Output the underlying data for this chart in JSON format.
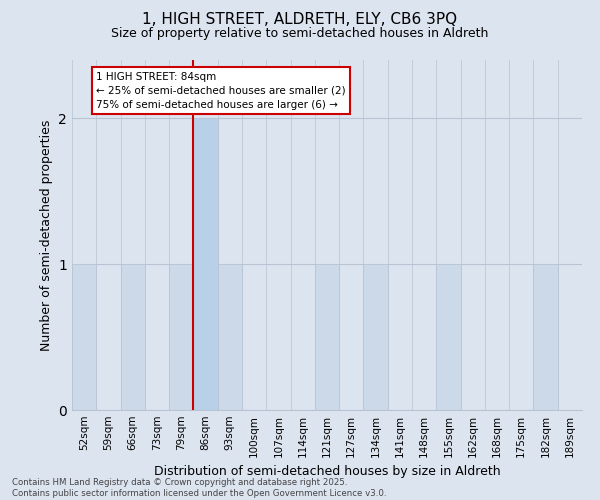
{
  "title_line1": "1, HIGH STREET, ALDRETH, ELY, CB6 3PQ",
  "title_line2": "Size of property relative to semi-detached houses in Aldreth",
  "xlabel": "Distribution of semi-detached houses by size in Aldreth",
  "ylabel": "Number of semi-detached properties",
  "categories": [
    "52sqm",
    "59sqm",
    "66sqm",
    "73sqm",
    "79sqm",
    "86sqm",
    "93sqm",
    "100sqm",
    "107sqm",
    "114sqm",
    "121sqm",
    "127sqm",
    "134sqm",
    "141sqm",
    "148sqm",
    "155sqm",
    "162sqm",
    "168sqm",
    "175sqm",
    "182sqm",
    "189sqm"
  ],
  "values": [
    1,
    0,
    1,
    0,
    1,
    2,
    1,
    0,
    0,
    0,
    1,
    0,
    1,
    0,
    0,
    1,
    0,
    0,
    0,
    1,
    0
  ],
  "highlight_index": 5,
  "bar_color": "#ccd9e8",
  "highlight_bar_color": "#b8d0e8",
  "highlight_line_color": "#cc0000",
  "annotation_title": "1 HIGH STREET: 84sqm",
  "annotation_line2": "← 25% of semi-detached houses are smaller (2)",
  "annotation_line3": "75% of semi-detached houses are larger (6) →",
  "annotation_box_facecolor": "#ffffff",
  "annotation_box_edge": "#cc0000",
  "grid_color": "#b8c4d4",
  "background_color": "#dce4f0",
  "ylim": [
    0,
    2.4
  ],
  "yticks": [
    0,
    1,
    2
  ],
  "footer_line1": "Contains HM Land Registry data © Crown copyright and database right 2025.",
  "footer_line2": "Contains public sector information licensed under the Open Government Licence v3.0."
}
